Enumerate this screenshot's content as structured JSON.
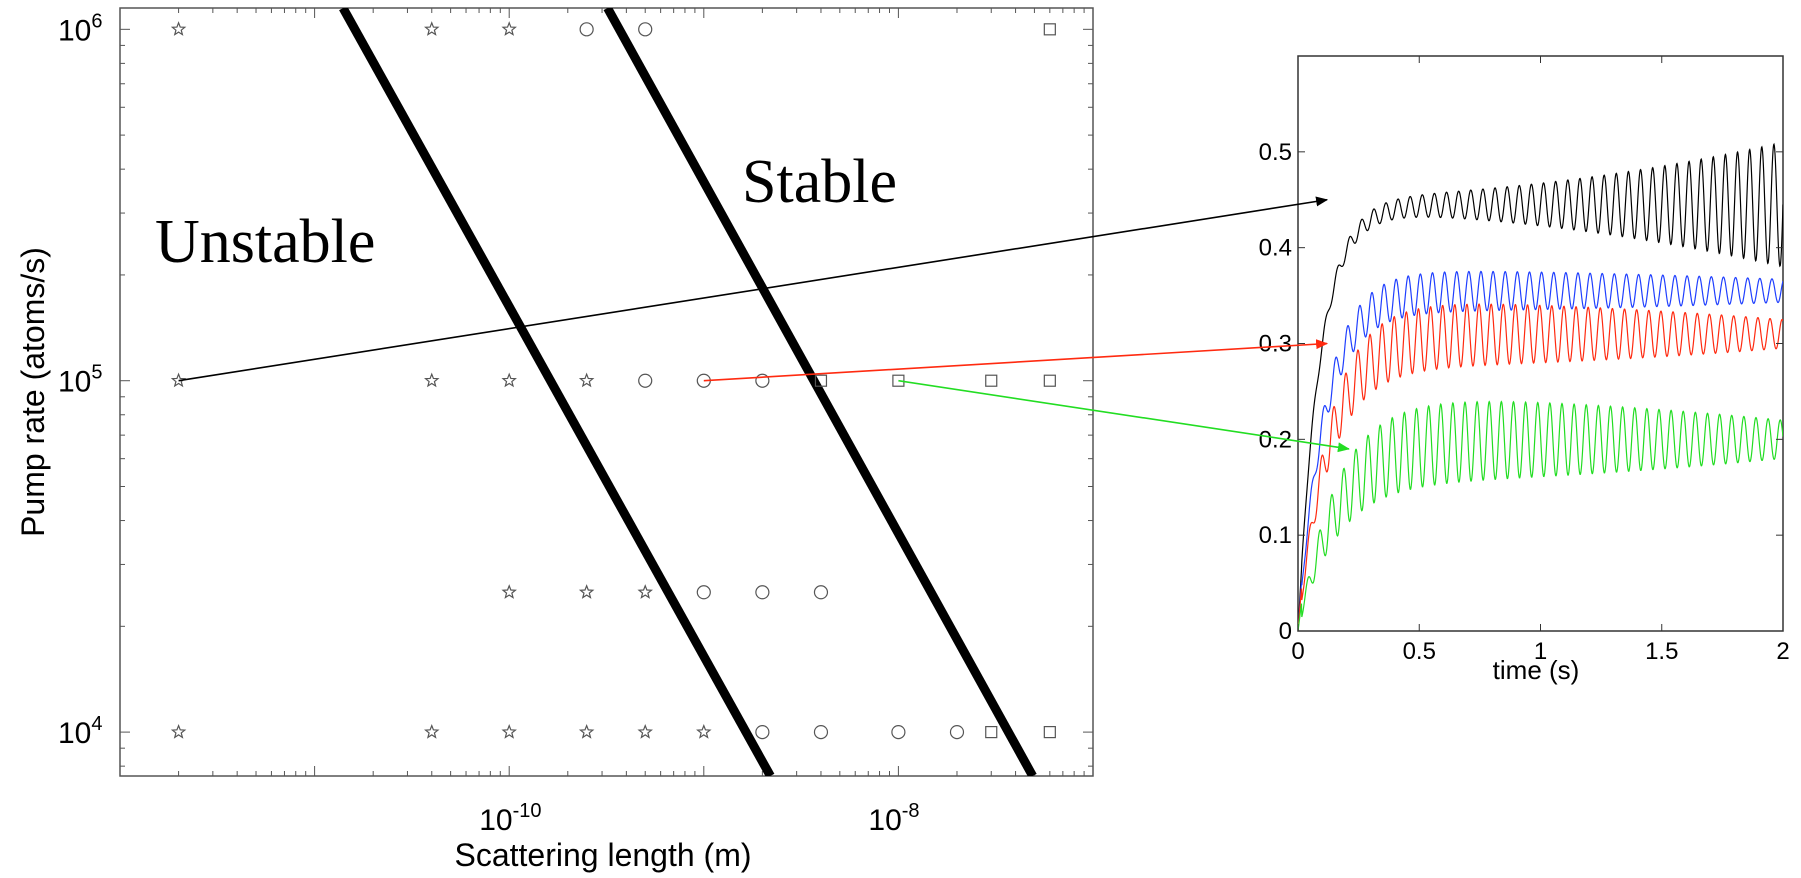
{
  "chart_data": [
    {
      "type": "scatter",
      "title": "",
      "xlabel": "Scattering length (m)",
      "ylabel": "Pump rate (atoms/s)",
      "xscale": "log",
      "yscale": "log",
      "xlim": [
        1e-12,
        1e-07
      ],
      "ylim": [
        7500.0,
        1150000.0
      ],
      "x_tick_labels": [
        {
          "value": 1e-10,
          "base": "10",
          "exp": "-10"
        },
        {
          "value": 1e-08,
          "base": "10",
          "exp": "-8"
        }
      ],
      "y_tick_labels": [
        {
          "value": 10000.0,
          "base": "10",
          "exp": "4"
        },
        {
          "value": 100000.0,
          "base": "10",
          "exp": "5"
        },
        {
          "value": 1000000.0,
          "base": "10",
          "exp": "6"
        }
      ],
      "grid": false,
      "regions": [
        "Unstable",
        "Stable"
      ],
      "boundary_lines": [
        {
          "from": [
            1.4e-11,
            1150000.0
          ],
          "to": [
            2.2e-09,
            7500.0
          ]
        },
        {
          "from": [
            3.2e-10,
            1150000.0
          ],
          "to": [
            4.9e-08,
            7500.0
          ]
        }
      ],
      "series": [
        {
          "marker": "star",
          "points": [
            [
              2e-12,
              1000000.0
            ],
            [
              4e-11,
              1000000.0
            ],
            [
              1e-10,
              1000000.0
            ],
            [
              2e-12,
              100000.0
            ],
            [
              4e-11,
              100000.0
            ],
            [
              1e-10,
              100000.0
            ],
            [
              2.5e-10,
              100000.0
            ],
            [
              1e-10,
              25000.0
            ],
            [
              2.5e-10,
              25000.0
            ],
            [
              5e-10,
              25000.0
            ],
            [
              2e-12,
              10000.0
            ],
            [
              4e-11,
              10000.0
            ],
            [
              1e-10,
              10000.0
            ],
            [
              2.5e-10,
              10000.0
            ],
            [
              5e-10,
              10000.0
            ],
            [
              1e-09,
              10000.0
            ]
          ]
        },
        {
          "marker": "circle",
          "points": [
            [
              2.5e-10,
              1000000.0
            ],
            [
              5e-10,
              1000000.0
            ],
            [
              5e-10,
              100000.0
            ],
            [
              1e-09,
              100000.0
            ],
            [
              2e-09,
              100000.0
            ],
            [
              1e-09,
              25000.0
            ],
            [
              2e-09,
              25000.0
            ],
            [
              4e-09,
              25000.0
            ],
            [
              2e-09,
              10000.0
            ],
            [
              4e-09,
              10000.0
            ],
            [
              1e-08,
              10000.0
            ],
            [
              2e-08,
              10000.0
            ]
          ]
        },
        {
          "marker": "square",
          "points": [
            [
              6e-08,
              1000000.0
            ],
            [
              4e-09,
              100000.0
            ],
            [
              1e-08,
              100000.0
            ],
            [
              3e-08,
              100000.0
            ],
            [
              6e-08,
              100000.0
            ],
            [
              3e-08,
              10000.0
            ],
            [
              6e-08,
              10000.0
            ]
          ]
        }
      ]
    },
    {
      "type": "line",
      "title": "",
      "xlabel": "time (s)",
      "ylabel": "",
      "xlim": [
        0,
        2
      ],
      "ylim": [
        0,
        0.6
      ],
      "x_ticks": [
        "0",
        "0.5",
        "1",
        "1.5",
        "2"
      ],
      "y_ticks": [
        "0",
        "0.1",
        "0.2",
        "0.3",
        "0.4",
        "0.5"
      ],
      "grid": false,
      "series": [
        {
          "color": "#000000",
          "steady_mean": 0.445,
          "osc_amp_start": 0.008,
          "osc_amp_end": 0.065,
          "rise_time": 0.09,
          "osc_period": 0.05
        },
        {
          "color": "#1f3fff",
          "steady_mean": 0.355,
          "osc_amp_start": 0.022,
          "osc_amp_end": 0.012,
          "rise_time": 0.11,
          "osc_period": 0.05
        },
        {
          "color": "#ff2a10",
          "steady_mean": 0.31,
          "osc_amp_start": 0.035,
          "osc_amp_end": 0.015,
          "rise_time": 0.13,
          "osc_period": 0.05
        },
        {
          "color": "#22dd22",
          "steady_mean": 0.2,
          "osc_amp_start": 0.045,
          "osc_amp_end": 0.02,
          "rise_time": 0.16,
          "osc_period": 0.05
        }
      ]
    }
  ],
  "connectors": [
    {
      "color": "#000000",
      "from_point": [
        2e-12,
        100000.0
      ],
      "to_time_value": [
        0.12,
        0.45
      ]
    },
    {
      "color": "#ff2a10",
      "from_point": [
        1e-09,
        100000.0
      ],
      "to_time_value": [
        0.12,
        0.3
      ]
    },
    {
      "color": "#22dd22",
      "from_point": [
        1e-08,
        100000.0
      ],
      "to_time_value": [
        0.21,
        0.19
      ]
    }
  ]
}
